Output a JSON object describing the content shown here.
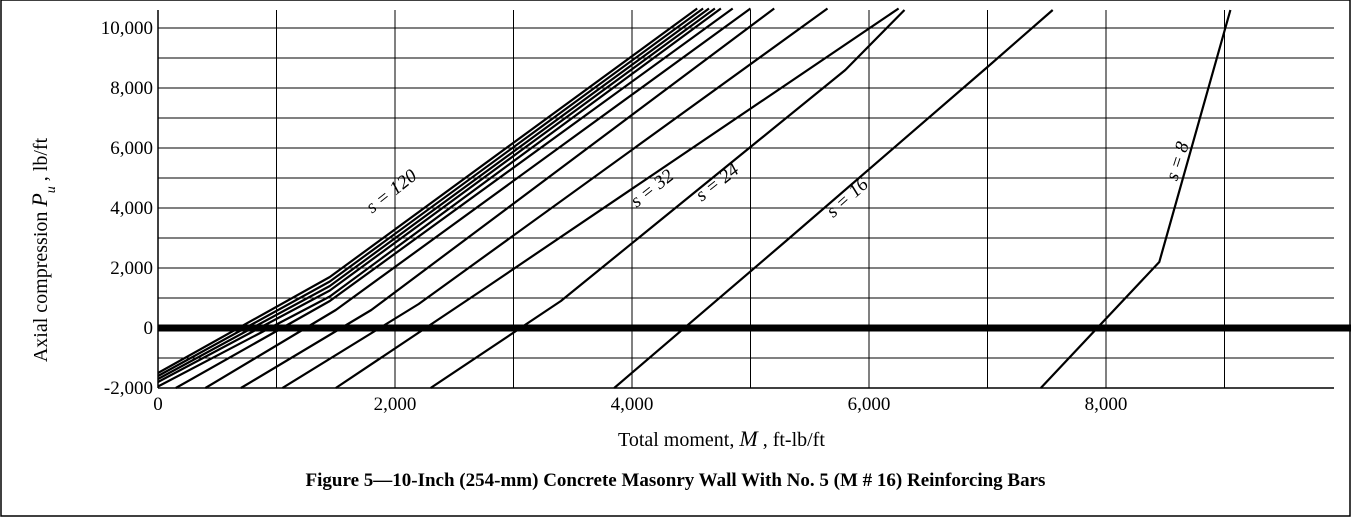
{
  "caption": "Figure 5—10-Inch (254-mm) Concrete Masonry Wall With No. 5 (M # 16) Reinforcing Bars",
  "chart_data": {
    "type": "line",
    "xlabel": {
      "prefix": "Total moment, ",
      "symbol": "M",
      "suffix": "  , ft-lb/ft"
    },
    "ylabel": {
      "prefix": "Axial compression ",
      "symbol": "P",
      "subscript": "u",
      "suffix": " , lb/ft"
    },
    "xlim": [
      0,
      10000
    ],
    "ylim": [
      -2000,
      10600
    ],
    "x_ticks": [
      {
        "value": 0,
        "label": "0"
      },
      {
        "value": 2000,
        "label": "2,000"
      },
      {
        "value": 4000,
        "label": "4,000"
      },
      {
        "value": 6000,
        "label": "6,000"
      },
      {
        "value": 8000,
        "label": "8,000"
      }
    ],
    "y_ticks": [
      {
        "value": 10000,
        "label": "10,000"
      },
      {
        "value": 8000,
        "label": "8,000"
      },
      {
        "value": 6000,
        "label": "6,000"
      },
      {
        "value": 4000,
        "label": "4,000"
      },
      {
        "value": 2000,
        "label": "2,000"
      },
      {
        "value": 0,
        "label": "0"
      },
      {
        "value": -2000,
        "label": "-2,000"
      }
    ],
    "x_grid_step": 1000,
    "y_grid_step": 1000,
    "grid": true,
    "zero_line": 0,
    "annotations": [
      {
        "text": "s = 120",
        "x": 2000,
        "y": 4400,
        "angle": -38
      },
      {
        "text": "s = 32",
        "x": 4200,
        "y": 4500,
        "angle": -38
      },
      {
        "text": "s = 24",
        "x": 4750,
        "y": 4700,
        "angle": -38
      },
      {
        "text": "s = 16",
        "x": 5850,
        "y": 4200,
        "angle": -42
      },
      {
        "text": "s = 8",
        "x": 8650,
        "y": 5500,
        "angle": -72
      }
    ],
    "series": [
      {
        "values": [
          [
            0,
            -1500
          ],
          [
            1450,
            1700
          ],
          [
            4550,
            10650
          ]
        ]
      },
      {
        "values": [
          [
            0,
            -1600
          ],
          [
            1450,
            1550
          ],
          [
            4600,
            10650
          ]
        ]
      },
      {
        "values": [
          [
            0,
            -1700
          ],
          [
            1450,
            1400
          ],
          [
            4650,
            10650
          ]
        ]
      },
      {
        "values": [
          [
            0,
            -1800
          ],
          [
            1450,
            1250
          ],
          [
            4700,
            10650
          ]
        ]
      },
      {
        "values": [
          [
            0,
            -1950
          ],
          [
            1450,
            1050
          ],
          [
            4750,
            10650
          ]
        ]
      },
      {
        "values": [
          [
            150,
            -2000
          ],
          [
            1450,
            900
          ],
          [
            4850,
            10650
          ]
        ]
      },
      {
        "values": [
          [
            400,
            -2000
          ],
          [
            1500,
            600
          ],
          [
            5000,
            10650
          ]
        ]
      },
      {
        "values": [
          [
            700,
            -2000
          ],
          [
            1800,
            600
          ],
          [
            5200,
            10650
          ]
        ]
      },
      {
        "values": [
          [
            1050,
            -2000
          ],
          [
            2200,
            800
          ],
          [
            5650,
            10650
          ]
        ]
      },
      {
        "values": [
          [
            1500,
            -2000
          ],
          [
            2750,
            1300
          ],
          [
            6250,
            10650
          ]
        ]
      },
      {
        "values": [
          [
            2300,
            -2000
          ],
          [
            3400,
            900
          ],
          [
            5800,
            8600
          ],
          [
            6300,
            10600
          ]
        ]
      },
      {
        "values": [
          [
            3850,
            -2000
          ],
          [
            5300,
            2900
          ],
          [
            7000,
            8700
          ],
          [
            7550,
            10600
          ]
        ]
      },
      {
        "values": [
          [
            7450,
            -2000
          ],
          [
            8450,
            2200
          ],
          [
            9050,
            10600
          ]
        ]
      }
    ]
  }
}
